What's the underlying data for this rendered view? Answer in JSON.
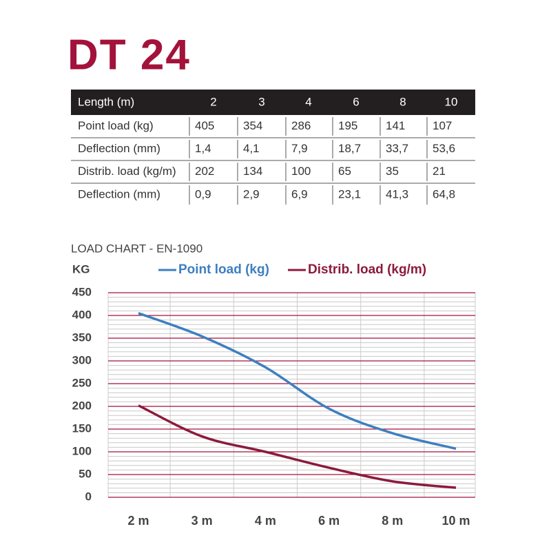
{
  "title": "DT 24",
  "table": {
    "header": [
      "Length (m)",
      "2",
      "3",
      "4",
      "6",
      "8",
      "10"
    ],
    "rows": [
      [
        "Point load (kg)",
        "405",
        "354",
        "286",
        "195",
        "141",
        "107"
      ],
      [
        "Deflection (mm)",
        "1,4",
        "4,1",
        "7,9",
        "18,7",
        "33,7",
        "53,6"
      ],
      [
        "Distrib. load (kg/m)",
        "202",
        "134",
        "100",
        "65",
        "35",
        "21"
      ],
      [
        "Deflection (mm)",
        "0,9",
        "2,9",
        "6,9",
        "23,1",
        "41,3",
        "64,8"
      ]
    ]
  },
  "chart_data": {
    "type": "line",
    "title": "LOAD CHART - EN-1090",
    "y_label": "KG",
    "categories": [
      "2 m",
      "3 m",
      "4 m",
      "6 m",
      "8 m",
      "10 m"
    ],
    "series": [
      {
        "name": "Point load (kg)",
        "color": "#3d7fc0",
        "values": [
          405,
          354,
          286,
          195,
          141,
          107
        ]
      },
      {
        "name": "Distrib. load (kg/m)",
        "color": "#8c1a3c",
        "values": [
          202,
          134,
          100,
          65,
          35,
          21
        ]
      }
    ],
    "ylim": [
      0,
      450
    ],
    "yticks": [
      0,
      50,
      100,
      150,
      200,
      250,
      300,
      350,
      400,
      450
    ],
    "grid": true,
    "grid_color": "#a3123a",
    "smooth": true
  }
}
